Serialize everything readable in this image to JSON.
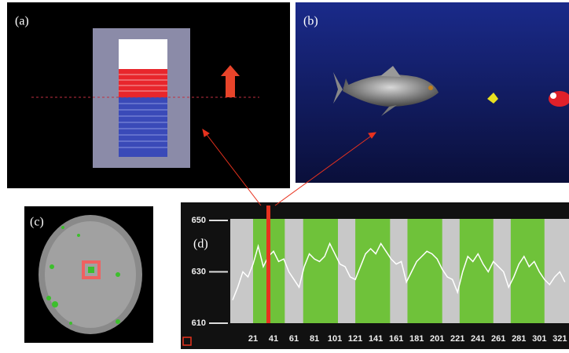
{
  "panels": [
    "(a)",
    "(b)",
    "(c)",
    "(d)"
  ],
  "chart_data": {
    "type": "line",
    "x": [
      1,
      6,
      11,
      16,
      21,
      26,
      31,
      36,
      41,
      46,
      51,
      56,
      61,
      66,
      71,
      76,
      81,
      86,
      91,
      96,
      101,
      106,
      111,
      116,
      121,
      126,
      131,
      136,
      141,
      146,
      151,
      156,
      161,
      166,
      171,
      176,
      181,
      186,
      191,
      196,
      201,
      206,
      211,
      216,
      221,
      226,
      231,
      236,
      241,
      246,
      251,
      256,
      261,
      266,
      271,
      276,
      281,
      286,
      291,
      296,
      301,
      306,
      311,
      316,
      321,
      326
    ],
    "values": [
      619,
      624,
      630,
      628,
      633,
      640,
      632,
      636,
      638,
      634,
      635,
      630,
      627,
      624,
      632,
      637,
      635,
      634,
      636,
      641,
      637,
      633,
      632,
      628,
      627,
      632,
      637,
      639,
      637,
      641,
      638,
      635,
      633,
      634,
      626,
      630,
      634,
      636,
      638,
      637,
      635,
      631,
      628,
      627,
      622,
      630,
      636,
      634,
      637,
      633,
      630,
      634,
      632,
      630,
      624,
      628,
      633,
      636,
      632,
      634,
      630,
      627,
      625,
      628,
      630,
      626
    ],
    "color": "#ffffff",
    "bands": [
      [
        21,
        52
      ],
      [
        70,
        104
      ],
      [
        121,
        155
      ],
      [
        172,
        206
      ],
      [
        223,
        256
      ],
      [
        273,
        306
      ]
    ],
    "band_color": "#6fc23a",
    "cursor": 36,
    "cursor_color": "#e8321e",
    "xlim": [
      1,
      330
    ],
    "ylim": [
      610,
      650
    ],
    "xticks": [
      21,
      41,
      61,
      81,
      101,
      121,
      141,
      161,
      181,
      201,
      221,
      241,
      261,
      281,
      301,
      321
    ],
    "yticks": [
      610,
      630,
      650
    ]
  }
}
